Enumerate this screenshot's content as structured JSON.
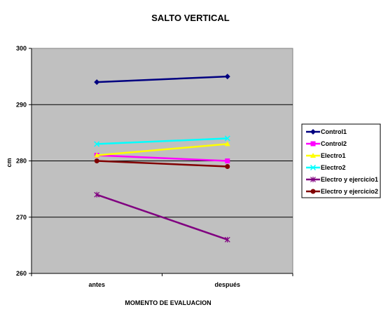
{
  "chart_data": {
    "type": "line",
    "title": "SALTO VERTICAL",
    "xlabel": "MOMENTO DE EVALUACION",
    "ylabel": "cm",
    "categories": [
      "antes",
      "después"
    ],
    "ylim": [
      260,
      300
    ],
    "yticks": [
      260,
      270,
      280,
      290,
      300
    ],
    "grid": true,
    "legend": "right",
    "series": [
      {
        "name": "Control1",
        "values": [
          294,
          295
        ],
        "color": "#000080",
        "marker": "diamond"
      },
      {
        "name": "Control2",
        "values": [
          281,
          280
        ],
        "color": "#ff00ff",
        "marker": "square"
      },
      {
        "name": "Electro1",
        "values": [
          281,
          283
        ],
        "color": "#ffff00",
        "marker": "triangle"
      },
      {
        "name": "Electro2",
        "values": [
          283,
          284
        ],
        "color": "#00ffff",
        "marker": "x"
      },
      {
        "name": "Electro y ejercicio1",
        "values": [
          274,
          266
        ],
        "color": "#800080",
        "marker": "star"
      },
      {
        "name": "Electro y ejercicio2",
        "values": [
          280,
          279
        ],
        "color": "#800000",
        "marker": "circle"
      }
    ]
  }
}
